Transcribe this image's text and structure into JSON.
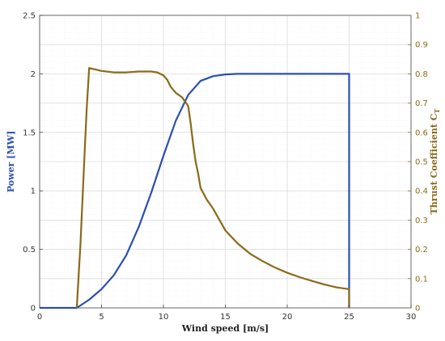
{
  "chart_data": {
    "type": "line",
    "xlabel": "Wind speed [m/s]",
    "ylabel_left": "Power [MW]",
    "ylabel_right_main": "Thrust Coefficient C",
    "ylabel_right_sub": "T",
    "xlim": [
      0,
      30
    ],
    "ylim_left": [
      0,
      2.5
    ],
    "ylim_right": [
      0,
      1
    ],
    "x_ticks": [
      "0",
      "5",
      "10",
      "15",
      "20",
      "25",
      "30"
    ],
    "y_left_ticks": [
      "0",
      "0.5",
      "1",
      "1.5",
      "2",
      "2.5"
    ],
    "y_right_ticks": [
      "0",
      "0.1",
      "0.2",
      "0.3",
      "0.4",
      "0.5",
      "0.6",
      "0.7",
      "0.8",
      "0.9",
      "1"
    ],
    "grid": true,
    "colors": {
      "power": "#2b4fb0",
      "thrust": "#8a6a1a",
      "right_axis": "#8a6a1a",
      "left_label": "#2b4fb0"
    },
    "series": [
      {
        "key": "power",
        "axis": "left",
        "x": [
          0,
          3,
          4,
          5,
          6,
          7,
          8,
          9,
          10,
          11,
          12,
          13,
          14,
          15,
          16,
          17,
          20,
          25,
          25
        ],
        "y": [
          0,
          0,
          0.07,
          0.16,
          0.28,
          0.45,
          0.69,
          0.98,
          1.3,
          1.6,
          1.82,
          1.94,
          1.98,
          1.995,
          2.0,
          2.0,
          2.0,
          2.0,
          0
        ]
      },
      {
        "key": "thrust",
        "axis": "right",
        "x": [
          3,
          3.3,
          3.6,
          3.8,
          4,
          5,
          6,
          7,
          8,
          9,
          9.5,
          10,
          10.3,
          10.6,
          11,
          11.5,
          12,
          12.2,
          12.4,
          12.6,
          12.8,
          13,
          13.5,
          14,
          15,
          16,
          17,
          18,
          19,
          20,
          21,
          22,
          23,
          24,
          25,
          25
        ],
        "y": [
          0,
          0.22,
          0.5,
          0.68,
          0.82,
          0.81,
          0.805,
          0.805,
          0.808,
          0.808,
          0.805,
          0.795,
          0.78,
          0.755,
          0.735,
          0.72,
          0.69,
          0.63,
          0.56,
          0.5,
          0.46,
          0.41,
          0.37,
          0.34,
          0.265,
          0.22,
          0.185,
          0.16,
          0.138,
          0.12,
          0.105,
          0.092,
          0.08,
          0.07,
          0.064,
          0
        ]
      }
    ]
  }
}
